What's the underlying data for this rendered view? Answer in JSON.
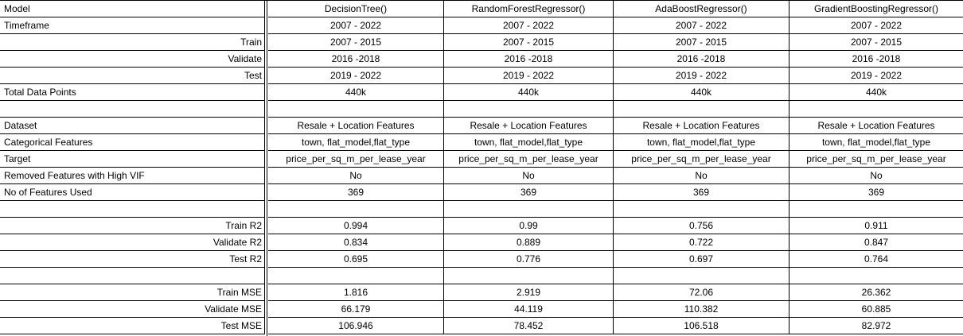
{
  "table": {
    "rows": [
      {
        "label": "Model",
        "align": "left",
        "cells": [
          "DecisionTree()",
          "RandomForestRegressor()",
          "AdaBoostRegressor()",
          "GradientBoostingRegressor()"
        ]
      },
      {
        "label": "Timeframe",
        "align": "left",
        "cells": [
          "2007 - 2022",
          "2007 - 2022",
          "2007 - 2022",
          "2007 - 2022"
        ]
      },
      {
        "label": "Train",
        "align": "right",
        "cells": [
          "2007 - 2015",
          "2007 - 2015",
          "2007 - 2015",
          "2007 - 2015"
        ]
      },
      {
        "label": "Validate",
        "align": "right",
        "cells": [
          "2016 -2018",
          "2016 -2018",
          "2016 -2018",
          "2016 -2018"
        ]
      },
      {
        "label": "Test",
        "align": "right",
        "cells": [
          "2019 - 2022",
          "2019 - 2022",
          "2019 - 2022",
          "2019 - 2022"
        ]
      },
      {
        "label": "Total Data Points",
        "align": "left",
        "cells": [
          "440k",
          "440k",
          "440k",
          "440k"
        ]
      },
      {
        "label": "",
        "align": "left",
        "cells": [
          "",
          "",
          "",
          ""
        ]
      },
      {
        "label": "Dataset",
        "align": "left",
        "cells": [
          "Resale + Location Features",
          "Resale + Location Features",
          "Resale + Location Features",
          "Resale + Location Features"
        ]
      },
      {
        "label": "Categorical Features",
        "align": "left",
        "cells": [
          "town, flat_model,flat_type",
          "town, flat_model,flat_type",
          "town, flat_model,flat_type",
          "town, flat_model,flat_type"
        ]
      },
      {
        "label": "Target",
        "align": "left",
        "cells": [
          "price_per_sq_m_per_lease_year",
          "price_per_sq_m_per_lease_year",
          "price_per_sq_m_per_lease_year",
          "price_per_sq_m_per_lease_year"
        ]
      },
      {
        "label": "Removed Features with High VIF",
        "align": "left",
        "cells": [
          "No",
          "No",
          "No",
          "No"
        ]
      },
      {
        "label": "No of Features Used",
        "align": "left",
        "cells": [
          "369",
          "369",
          "369",
          "369"
        ]
      },
      {
        "label": "",
        "align": "left",
        "cells": [
          "",
          "",
          "",
          ""
        ]
      },
      {
        "label": "Train R2",
        "align": "right",
        "cells": [
          "0.994",
          "0.99",
          "0.756",
          "0.911"
        ]
      },
      {
        "label": "Validate R2",
        "align": "right",
        "cells": [
          "0.834",
          "0.889",
          "0.722",
          "0.847"
        ]
      },
      {
        "label": "Test R2",
        "align": "right",
        "cells": [
          "0.695",
          "0.776",
          "0.697",
          "0.764"
        ]
      },
      {
        "label": "",
        "align": "left",
        "cells": [
          "",
          "",
          "",
          ""
        ]
      },
      {
        "label": "Train MSE",
        "align": "right",
        "cells": [
          "1.816",
          "2.919",
          "72.06",
          "26.362"
        ]
      },
      {
        "label": "Validate MSE",
        "align": "right",
        "cells": [
          "66.179",
          "44.119",
          "110.382",
          "60.885"
        ]
      },
      {
        "label": "Test MSE",
        "align": "right",
        "cells": [
          "106.946",
          "78.452",
          "106.518",
          "82.972"
        ]
      }
    ]
  }
}
